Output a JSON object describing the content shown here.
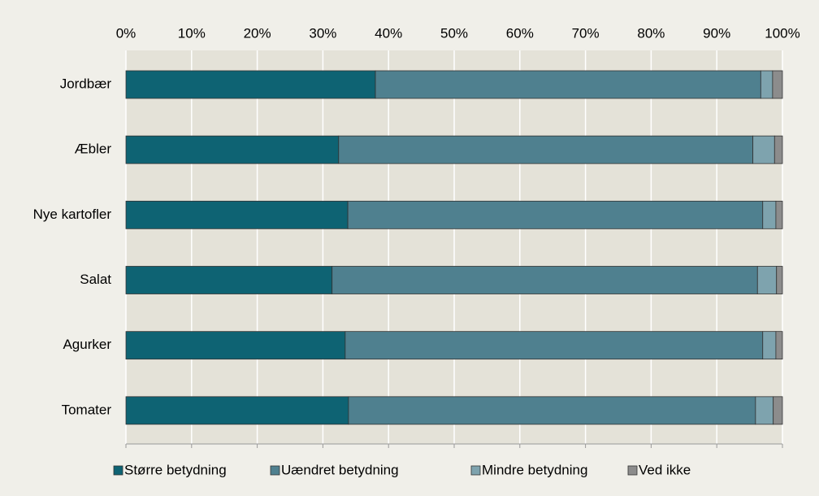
{
  "chart_data": {
    "type": "stacked-bar-horizontal",
    "categories": [
      "Jordbær",
      "Æbler",
      "Nye kartofler",
      "Salat",
      "Agurker",
      "Tomater"
    ],
    "series": [
      {
        "name": "Større betydning",
        "color": "#0e6373",
        "values": [
          38.0,
          32.4,
          33.8,
          31.4,
          33.4,
          33.9
        ]
      },
      {
        "name": "Uændret betydning",
        "color": "#4f808f",
        "values": [
          58.7,
          63.1,
          63.2,
          64.8,
          63.6,
          62.0
        ]
      },
      {
        "name": "Mindre betydning",
        "color": "#7ea3ae",
        "values": [
          1.8,
          3.3,
          2.0,
          2.9,
          2.0,
          2.7
        ]
      },
      {
        "name": "Ved ikke",
        "color": "#8c8c8c",
        "values": [
          1.5,
          1.2,
          1.0,
          0.9,
          1.0,
          1.4
        ]
      }
    ],
    "xlim": [
      0,
      100
    ],
    "xticks": [
      {
        "value": 0,
        "label": "0%"
      },
      {
        "value": 10,
        "label": "10%"
      },
      {
        "value": 20,
        "label": "20%"
      },
      {
        "value": 30,
        "label": "30%"
      },
      {
        "value": 40,
        "label": "40%"
      },
      {
        "value": 50,
        "label": "50%"
      },
      {
        "value": 60,
        "label": "60%"
      },
      {
        "value": 70,
        "label": "70%"
      },
      {
        "value": 80,
        "label": "80%"
      },
      {
        "value": 90,
        "label": "90%"
      },
      {
        "value": 100,
        "label": "100%"
      }
    ],
    "grid": true
  }
}
